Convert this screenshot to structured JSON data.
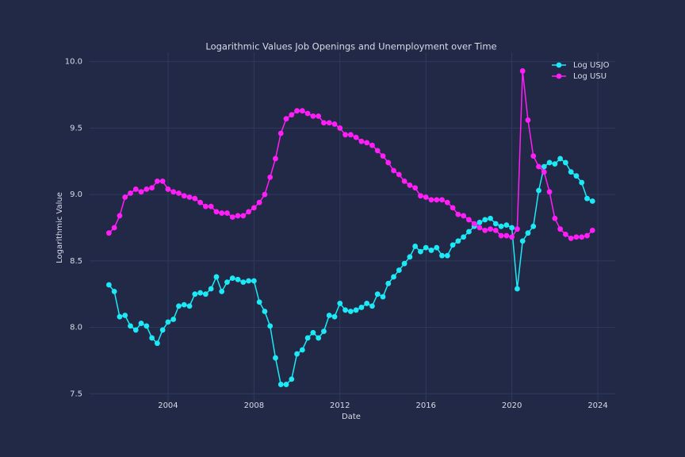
{
  "chart_data": {
    "type": "line",
    "title": "Logarithmic Values Job Openings and Unemployment over Time",
    "xlabel": "Date",
    "ylabel": "Logarithmic Value",
    "x": [
      2001.25,
      2001.5,
      2001.75,
      2002,
      2002.25,
      2002.5,
      2002.75,
      2003,
      2003.25,
      2003.5,
      2003.75,
      2004,
      2004.25,
      2004.5,
      2004.75,
      2005,
      2005.25,
      2005.5,
      2005.75,
      2006,
      2006.25,
      2006.5,
      2006.75,
      2007,
      2007.25,
      2007.5,
      2007.75,
      2008,
      2008.25,
      2008.5,
      2008.75,
      2009,
      2009.25,
      2009.5,
      2009.75,
      2010,
      2010.25,
      2010.5,
      2010.75,
      2011,
      2011.25,
      2011.5,
      2011.75,
      2012,
      2012.25,
      2012.5,
      2012.75,
      2013,
      2013.25,
      2013.5,
      2013.75,
      2014,
      2014.25,
      2014.5,
      2014.75,
      2015,
      2015.25,
      2015.5,
      2015.75,
      2016,
      2016.25,
      2016.5,
      2016.75,
      2017,
      2017.25,
      2017.5,
      2017.75,
      2018,
      2018.25,
      2018.5,
      2018.75,
      2019,
      2019.25,
      2019.5,
      2019.75,
      2020,
      2020.25,
      2020.5,
      2020.75,
      2021,
      2021.25,
      2021.5,
      2021.75,
      2022,
      2022.25,
      2022.5,
      2022.75,
      2023,
      2023.25,
      2023.5,
      2023.75
    ],
    "series": [
      {
        "name": "Log USJO",
        "color": "#1de9f6",
        "values": [
          8.32,
          8.27,
          8.08,
          8.09,
          8.01,
          7.98,
          8.03,
          8.01,
          7.92,
          7.88,
          7.98,
          8.04,
          8.06,
          8.16,
          8.17,
          8.16,
          8.25,
          8.26,
          8.25,
          8.29,
          8.38,
          8.27,
          8.34,
          8.37,
          8.36,
          8.34,
          8.35,
          8.35,
          8.19,
          8.12,
          8.01,
          7.77,
          7.57,
          7.57,
          7.61,
          7.8,
          7.83,
          7.92,
          7.96,
          7.92,
          7.97,
          8.09,
          8.08,
          8.18,
          8.13,
          8.12,
          8.13,
          8.15,
          8.18,
          8.16,
          8.25,
          8.23,
          8.33,
          8.38,
          8.43,
          8.48,
          8.53,
          8.61,
          8.57,
          8.6,
          8.58,
          8.6,
          8.54,
          8.54,
          8.62,
          8.65,
          8.68,
          8.72,
          8.76,
          8.79,
          8.81,
          8.82,
          8.78,
          8.76,
          8.77,
          8.75,
          8.29,
          8.65,
          8.71,
          8.76,
          9.03,
          9.21,
          9.24,
          9.23,
          9.27,
          9.24,
          9.17,
          9.14,
          9.09,
          8.97,
          8.95
        ]
      },
      {
        "name": "Log USU",
        "color": "#ff1ef7",
        "values": [
          8.71,
          8.75,
          8.84,
          8.98,
          9.01,
          9.04,
          9.02,
          9.04,
          9.05,
          9.1,
          9.1,
          9.04,
          9.02,
          9.01,
          8.99,
          8.98,
          8.97,
          8.94,
          8.91,
          8.91,
          8.87,
          8.86,
          8.86,
          8.83,
          8.84,
          8.84,
          8.87,
          8.9,
          8.94,
          9.0,
          9.13,
          9.27,
          9.46,
          9.57,
          9.6,
          9.63,
          9.63,
          9.61,
          9.59,
          9.59,
          9.54,
          9.54,
          9.53,
          9.5,
          9.45,
          9.45,
          9.43,
          9.4,
          9.39,
          9.37,
          9.33,
          9.29,
          9.24,
          9.18,
          9.15,
          9.1,
          9.07,
          9.05,
          8.99,
          8.98,
          8.96,
          8.96,
          8.96,
          8.94,
          8.9,
          8.85,
          8.84,
          8.81,
          8.78,
          8.75,
          8.73,
          8.74,
          8.73,
          8.69,
          8.69,
          8.68,
          8.74,
          9.93,
          9.56,
          9.29,
          9.21,
          9.17,
          9.02,
          8.82,
          8.74,
          8.7,
          8.67,
          8.68,
          8.68,
          8.69,
          8.73
        ]
      }
    ],
    "xlim": [
      2000.35,
      2024.81
    ],
    "xticks": [
      2004,
      2008,
      2012,
      2016,
      2020,
      2024
    ],
    "ylim": [
      7.43,
      10.07
    ],
    "yticks": [
      {
        "value": 7.5,
        "label": "7.5"
      },
      {
        "value": 8,
        "label": "8.0"
      },
      {
        "value": 8.5,
        "label": "8.5"
      },
      {
        "value": 9,
        "label": "9.0"
      },
      {
        "value": 9.5,
        "label": "9.5"
      },
      {
        "value": 10,
        "label": "10.0"
      }
    ],
    "grid": true,
    "legend": "upper right"
  }
}
